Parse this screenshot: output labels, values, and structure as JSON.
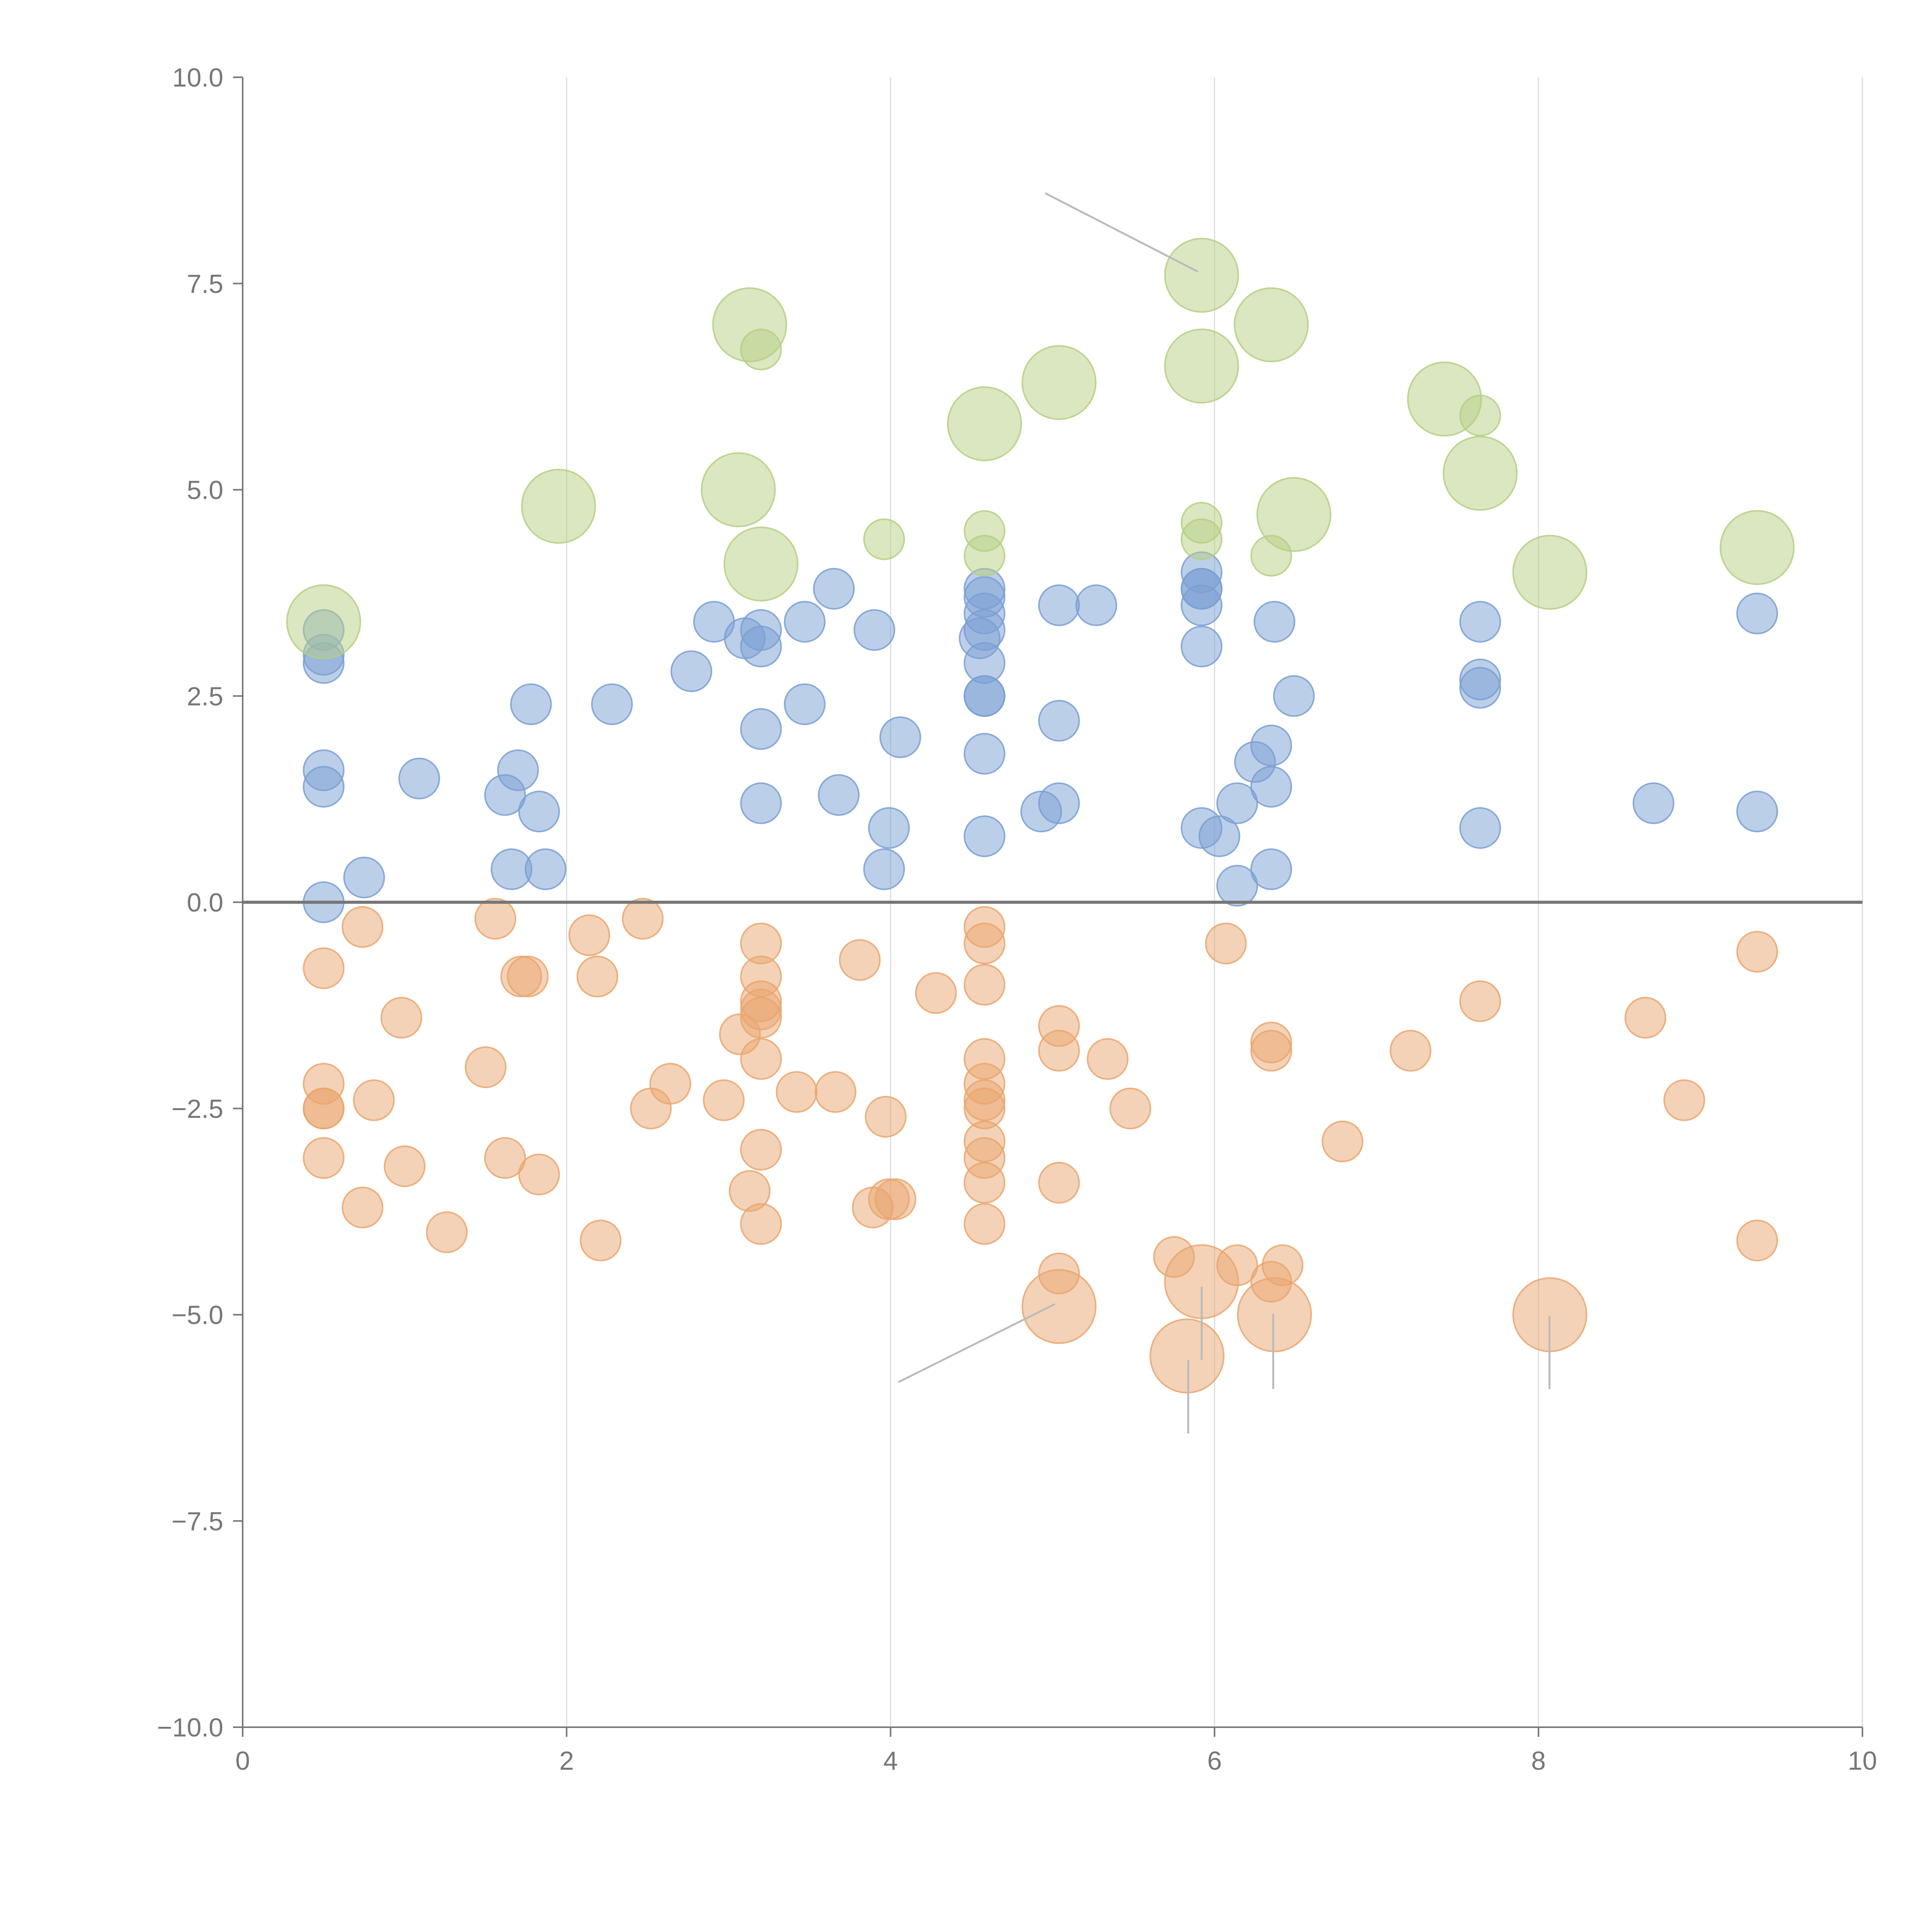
{
  "chart_data": {
    "type": "scatter",
    "title": "",
    "xlabel": "",
    "ylabel": "",
    "xlim": [
      0,
      10
    ],
    "ylim": [
      -10,
      10
    ],
    "x_ticks": [
      "0",
      "2",
      "4",
      "6",
      "8",
      "10"
    ],
    "y_ticks": [
      "10.0",
      "7.5",
      "5.0",
      "2.5",
      "0.0",
      "−2.5",
      "−5.0",
      "−7.5",
      "−10.0"
    ],
    "x_tick_values": [
      0,
      2,
      4,
      6,
      8,
      10
    ],
    "y_tick_values": [
      10,
      7.5,
      5,
      2.5,
      0,
      -2.5,
      -5,
      -7.5,
      -10
    ],
    "grid": "vertical",
    "series": [
      {
        "name": "blue",
        "color": "#7a9fd4",
        "size": 1,
        "points": [
          [
            0.5,
            3.3
          ],
          [
            0.5,
            3.0
          ],
          [
            0.5,
            2.9
          ],
          [
            0.5,
            1.6
          ],
          [
            0.5,
            1.4
          ],
          [
            0.5,
            0.0
          ],
          [
            0.75,
            0.3
          ],
          [
            1.09,
            1.5
          ],
          [
            1.62,
            1.3
          ],
          [
            1.7,
            1.6
          ],
          [
            1.66,
            0.4
          ],
          [
            1.78,
            2.4
          ],
          [
            1.83,
            1.1
          ],
          [
            1.87,
            0.4
          ],
          [
            2.28,
            2.4
          ],
          [
            2.77,
            2.8
          ],
          [
            2.91,
            3.4
          ],
          [
            3.1,
            3.2
          ],
          [
            3.2,
            3.3
          ],
          [
            3.2,
            3.1
          ],
          [
            3.2,
            2.1
          ],
          [
            3.2,
            1.2
          ],
          [
            3.47,
            3.4
          ],
          [
            3.47,
            2.4
          ],
          [
            3.65,
            3.8
          ],
          [
            3.68,
            1.3
          ],
          [
            3.9,
            3.3
          ],
          [
            3.96,
            0.4
          ],
          [
            3.99,
            0.9
          ],
          [
            4.06,
            2.0
          ],
          [
            4.58,
            3.8
          ],
          [
            4.58,
            3.7
          ],
          [
            4.58,
            3.5
          ],
          [
            4.58,
            3.3
          ],
          [
            4.55,
            3.2
          ],
          [
            4.58,
            2.9
          ],
          [
            4.58,
            2.5
          ],
          [
            4.58,
            2.5
          ],
          [
            4.58,
            1.8
          ],
          [
            4.58,
            0.8
          ],
          [
            4.93,
            1.1
          ],
          [
            5.04,
            1.2
          ],
          [
            5.04,
            2.2
          ],
          [
            5.04,
            3.6
          ],
          [
            5.27,
            3.6
          ],
          [
            5.92,
            4.0
          ],
          [
            5.92,
            3.8
          ],
          [
            5.92,
            3.8
          ],
          [
            5.92,
            3.6
          ],
          [
            5.92,
            3.1
          ],
          [
            5.92,
            0.9
          ],
          [
            6.03,
            0.8
          ],
          [
            6.14,
            1.2
          ],
          [
            6.14,
            0.2
          ],
          [
            6.25,
            1.7
          ],
          [
            6.35,
            1.9
          ],
          [
            6.35,
            1.4
          ],
          [
            6.35,
            0.4
          ],
          [
            6.37,
            3.4
          ],
          [
            6.49,
            2.5
          ],
          [
            7.64,
            3.4
          ],
          [
            7.64,
            2.7
          ],
          [
            7.64,
            2.6
          ],
          [
            7.64,
            0.9
          ],
          [
            8.71,
            1.2
          ],
          [
            9.35,
            3.5
          ],
          [
            9.35,
            1.1
          ]
        ]
      },
      {
        "name": "orange",
        "color": "#e9a66f",
        "size": 1,
        "points": [
          [
            0.5,
            -0.8
          ],
          [
            0.5,
            -2.2
          ],
          [
            0.5,
            -2.5
          ],
          [
            0.5,
            -2.5
          ],
          [
            0.5,
            -3.1
          ],
          [
            0.74,
            -0.3
          ],
          [
            0.74,
            -3.7
          ],
          [
            0.81,
            -2.4
          ],
          [
            0.98,
            -1.4
          ],
          [
            1.0,
            -3.2
          ],
          [
            1.26,
            -4.0
          ],
          [
            1.5,
            -2.0
          ],
          [
            1.56,
            -0.2
          ],
          [
            1.62,
            -3.1
          ],
          [
            1.72,
            -0.9
          ],
          [
            1.76,
            -0.9
          ],
          [
            1.83,
            -3.3
          ],
          [
            2.14,
            -0.4
          ],
          [
            2.19,
            -0.9
          ],
          [
            2.21,
            -4.1
          ],
          [
            2.47,
            -0.2
          ],
          [
            2.52,
            -2.5
          ],
          [
            2.64,
            -2.2
          ],
          [
            2.97,
            -2.4
          ],
          [
            3.07,
            -1.6
          ],
          [
            3.13,
            -3.5
          ],
          [
            3.2,
            -0.5
          ],
          [
            3.2,
            -0.9
          ],
          [
            3.2,
            -1.2
          ],
          [
            3.2,
            -1.3
          ],
          [
            3.2,
            -1.4
          ],
          [
            3.2,
            -1.9
          ],
          [
            3.2,
            -3.0
          ],
          [
            3.2,
            -3.9
          ],
          [
            3.42,
            -2.3
          ],
          [
            3.66,
            -2.3
          ],
          [
            3.81,
            -0.7
          ],
          [
            3.89,
            -3.7
          ],
          [
            3.97,
            -2.6
          ],
          [
            3.99,
            -3.6
          ],
          [
            4.03,
            -3.6
          ],
          [
            4.28,
            -1.1
          ],
          [
            4.58,
            -0.3
          ],
          [
            4.58,
            -0.5
          ],
          [
            4.58,
            -1.0
          ],
          [
            4.58,
            -1.9
          ],
          [
            4.58,
            -2.2
          ],
          [
            4.58,
            -2.4
          ],
          [
            4.58,
            -2.5
          ],
          [
            4.58,
            -2.9
          ],
          [
            4.58,
            -3.1
          ],
          [
            4.58,
            -3.4
          ],
          [
            4.58,
            -3.9
          ],
          [
            5.04,
            -1.5
          ],
          [
            5.04,
            -1.8
          ],
          [
            5.04,
            -3.4
          ],
          [
            5.04,
            -4.5
          ],
          [
            5.34,
            -1.9
          ],
          [
            5.48,
            -2.5
          ],
          [
            5.75,
            -4.3
          ],
          [
            6.07,
            -0.5
          ],
          [
            6.14,
            -4.4
          ],
          [
            6.35,
            -1.7
          ],
          [
            6.35,
            -1.8
          ],
          [
            6.35,
            -4.6
          ],
          [
            6.42,
            -4.4
          ],
          [
            6.79,
            -2.9
          ],
          [
            7.21,
            -1.8
          ],
          [
            7.64,
            -1.2
          ],
          [
            8.66,
            -1.4
          ],
          [
            8.9,
            -2.4
          ],
          [
            9.35,
            -0.6
          ],
          [
            9.35,
            -4.1
          ]
        ]
      },
      {
        "name": "orange-large",
        "color": "#e9a66f",
        "size": 2,
        "points": [
          [
            5.04,
            -4.9
          ],
          [
            5.92,
            -4.6
          ],
          [
            5.83,
            -5.5
          ],
          [
            6.37,
            -5.0
          ],
          [
            8.07,
            -5.0
          ]
        ]
      },
      {
        "name": "green",
        "color": "#b5cf83",
        "size": 1,
        "points": [
          [
            3.2,
            6.7
          ],
          [
            3.96,
            4.4
          ],
          [
            4.58,
            4.5
          ],
          [
            4.58,
            4.2
          ],
          [
            5.92,
            4.6
          ],
          [
            5.92,
            4.4
          ],
          [
            6.35,
            4.2
          ],
          [
            7.64,
            5.9
          ]
        ]
      },
      {
        "name": "green-large",
        "color": "#b5cf83",
        "size": 2,
        "points": [
          [
            0.5,
            3.4
          ],
          [
            1.95,
            4.8
          ],
          [
            3.06,
            5.0
          ],
          [
            3.13,
            7.0
          ],
          [
            3.2,
            4.1
          ],
          [
            4.58,
            5.8
          ],
          [
            5.04,
            6.3
          ],
          [
            5.92,
            7.6
          ],
          [
            5.92,
            6.5
          ],
          [
            6.35,
            7.0
          ],
          [
            6.49,
            4.7
          ],
          [
            7.42,
            6.1
          ],
          [
            7.64,
            5.2
          ],
          [
            8.07,
            4.0
          ],
          [
            9.35,
            4.3
          ]
        ]
      }
    ]
  }
}
